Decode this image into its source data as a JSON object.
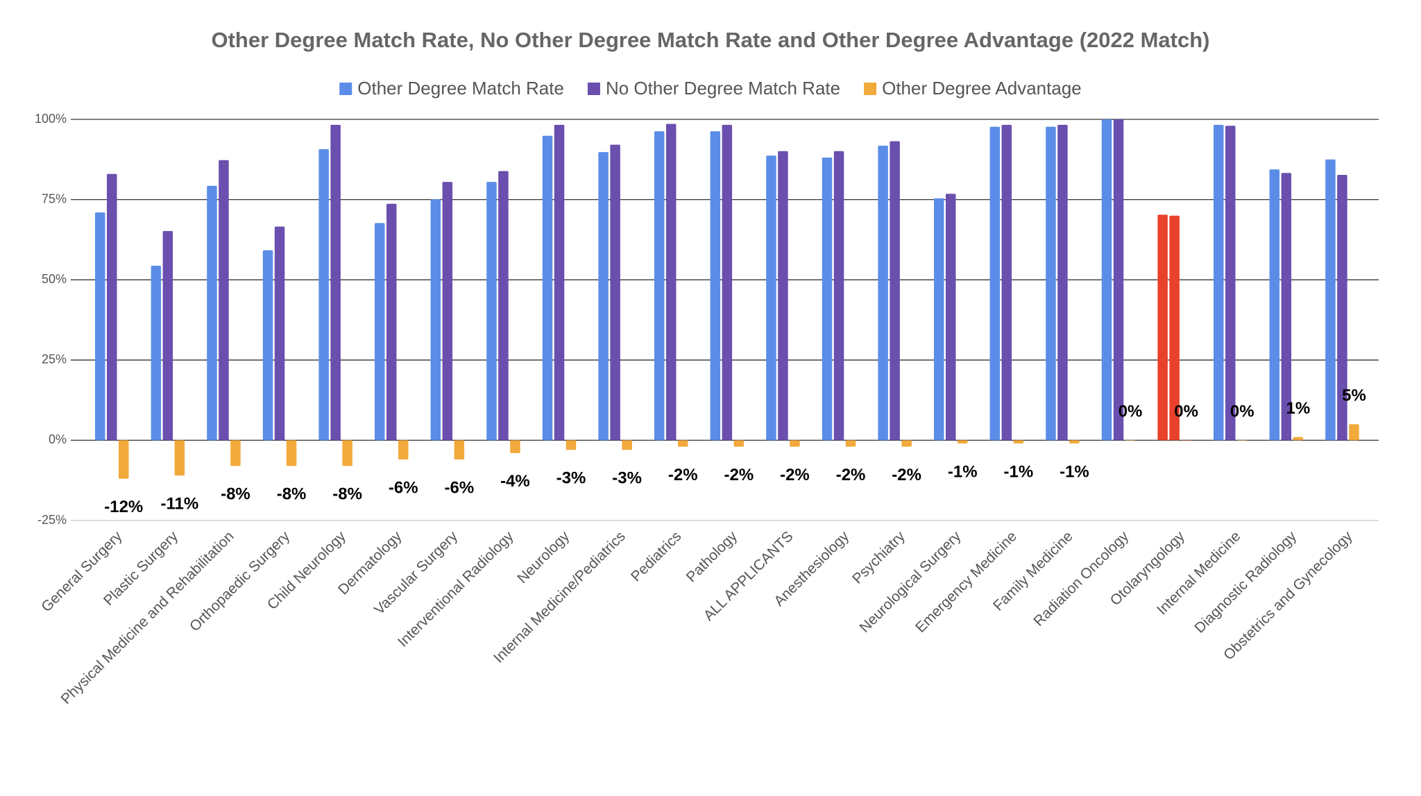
{
  "chart_data": {
    "type": "bar",
    "title": "Other Degree Match Rate, No Other Degree Match Rate and Other Degree Advantage (2022 Match)",
    "categories": [
      "General Surgery",
      "Plastic Surgery",
      "Physical Medicine and Rehabilitation",
      "Orthopaedic Surgery",
      "Child Neurology",
      "Dermatology",
      "Vascular Surgery",
      "Interventional Radiology",
      "Neurology",
      "Internal Medicine/Pediatrics",
      "Pediatrics",
      "Pathology",
      "ALL APPLICANTS",
      "Anesthesiology",
      "Psychiatry",
      "Neurological Surgery",
      "Emergency Medicine",
      "Family Medicine",
      "Radiation Oncology",
      "Otolaryngology",
      "Internal Medicine",
      "Diagnostic Radiology",
      "Obstetrics and Gynecology"
    ],
    "series": [
      {
        "name": "Other Degree Match Rate",
        "color": "#5b8de8",
        "values": [
          71,
          54.4,
          79.3,
          59.2,
          90.7,
          67.7,
          75.1,
          80.5,
          94.9,
          89.8,
          96.3,
          96.3,
          88.7,
          88.1,
          91.8,
          75.4,
          97.7,
          97.7,
          100,
          70.3,
          98.3,
          84.4,
          87.5
        ]
      },
      {
        "name": "No Other Degree Match Rate",
        "color": "#6a4fae",
        "values": [
          83,
          65.2,
          87.3,
          66.6,
          98.3,
          73.7,
          80.5,
          83.9,
          98.3,
          92.1,
          98.6,
          98.3,
          90.1,
          90.1,
          93.2,
          76.8,
          98.3,
          98.3,
          100,
          70,
          98,
          83.3,
          82.7
        ]
      },
      {
        "name": "Other Degree Advantage",
        "color": "#f2a93b",
        "values": [
          -12,
          -11,
          -8,
          -8,
          -8,
          -6,
          -6,
          -4,
          -3,
          -3,
          -2,
          -2,
          -2,
          -2,
          -2,
          -1,
          -1,
          -1,
          0,
          0,
          0,
          1,
          5
        ],
        "value_labels": [
          "-12%",
          "-11%",
          "-8%",
          "-8%",
          "-8%",
          "-6%",
          "-6%",
          "-4%",
          "-3%",
          "-3%",
          "-2%",
          "-2%",
          "-2%",
          "-2%",
          "-2%",
          "-1%",
          "-1%",
          "-1%",
          "0%",
          "0%",
          "0%",
          "1%",
          "5%"
        ]
      }
    ],
    "highlight_index": 19,
    "highlight_color": "#e8412c",
    "ylim": [
      -25,
      100
    ],
    "yticks": [
      {
        "value": -25,
        "label": "-25%"
      },
      {
        "value": 0,
        "label": "0%"
      },
      {
        "value": 25,
        "label": "25%"
      },
      {
        "value": 50,
        "label": "50%"
      },
      {
        "value": 75,
        "label": "75%"
      },
      {
        "value": 100,
        "label": "100%"
      }
    ],
    "grid": true,
    "legend": "top"
  }
}
